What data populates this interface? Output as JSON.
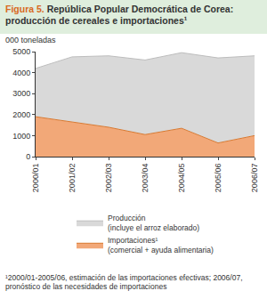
{
  "chart_data": {
    "type": "area",
    "title": "Figura 5. República Popular Democrática de Corea: producción de cereales e importaciones¹",
    "ylabel": "000 toneladas",
    "categories": [
      "2000/01",
      "2001/02",
      "2002/03",
      "2003/04",
      "2004/05",
      "2005/06",
      "2006/07"
    ],
    "series": [
      {
        "name": "Importaciones¹ (comercial + ayuda alimentaria)",
        "color": "#f2a878",
        "values": [
          1900,
          1650,
          1400,
          1050,
          1350,
          650,
          1000
        ]
      },
      {
        "name": "Producción (incluye el arroz elaborado)",
        "color": "#d9d9d9",
        "values": [
          2300,
          3100,
          3400,
          3550,
          3600,
          4050,
          3800
        ]
      }
    ],
    "stacked": true,
    "ylim": [
      0,
      5000
    ],
    "yticks": [
      0,
      1000,
      2000,
      3000,
      4000,
      5000
    ],
    "grid": false,
    "legend": "bottom",
    "annotations": [
      "¹2000/01-2005/06, estimación de las importaciones efectivas; 2006/07, pronóstico de las necesidades de importaciones"
    ]
  }
}
